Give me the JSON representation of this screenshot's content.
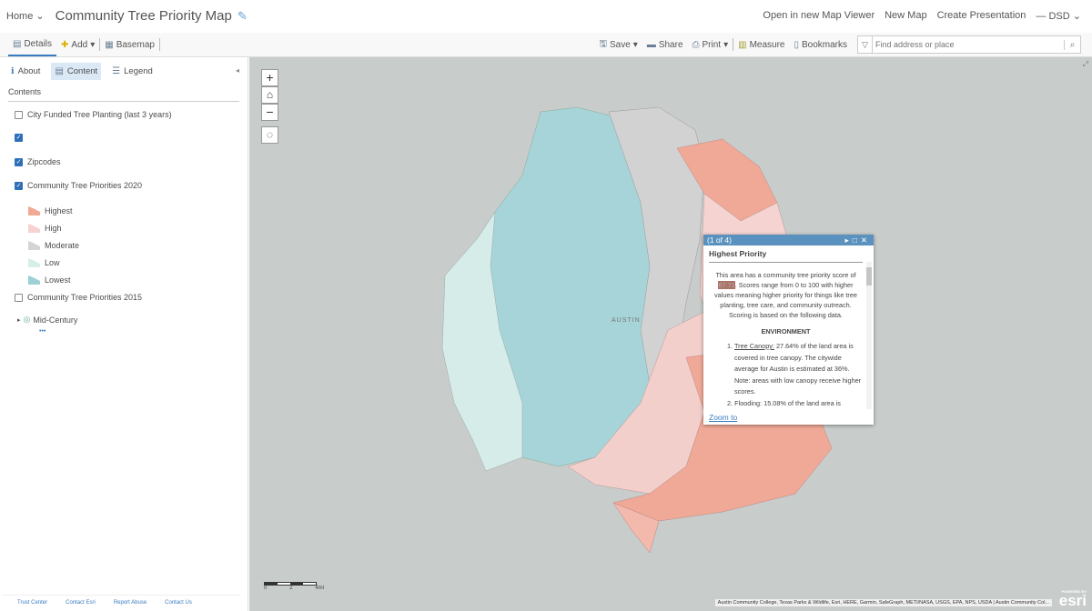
{
  "header": {
    "home": "Home",
    "title": "Community Tree Priority Map",
    "links": [
      "Open in new Map Viewer",
      "New Map",
      "Create Presentation"
    ],
    "user": "DSD"
  },
  "toolbar": {
    "details": "Details",
    "add": "Add",
    "basemap": "Basemap",
    "save": "Save",
    "share": "Share",
    "print": "Print",
    "measure": "Measure",
    "bookmarks": "Bookmarks",
    "search_placeholder": "Find address or place"
  },
  "sidebar": {
    "tabs": [
      "About",
      "Content",
      "Legend"
    ],
    "active_tab": "Content",
    "contents_label": "Contents",
    "layers": [
      {
        "label": "City Funded Tree Planting (last 3 years)",
        "checked": false
      },
      {
        "label": "",
        "checked": true
      },
      {
        "label": "Zipcodes",
        "checked": true
      },
      {
        "label": "Community Tree Priorities 2020",
        "checked": true
      },
      {
        "label": "Community Tree Priorities 2015",
        "checked": false
      },
      {
        "label": "Mid-Century",
        "checked": false
      }
    ],
    "legend": [
      {
        "label": "Highest",
        "color": "#f2a993"
      },
      {
        "label": "High",
        "color": "#f6d3d0"
      },
      {
        "label": "Moderate",
        "color": "#d4d4d4"
      },
      {
        "label": "Low",
        "color": "#d6efea"
      },
      {
        "label": "Lowest",
        "color": "#9ed1d6"
      }
    ],
    "more": "•••",
    "footer": [
      "Trust Center",
      "Contact Esri",
      "Report Abuse",
      "Contact Us"
    ]
  },
  "map": {
    "place_label": "AUSTIN",
    "scale_labels": [
      "0",
      "2",
      "4mi"
    ],
    "attribution": "Austin Community College, Texas Parks & Wildlife, Esri, HERE, Garmin, SafeGraph, METI/NASA, USGS, EPA, NPS, USDA | Austin Community Col...",
    "esri_powered": "POWERED BY",
    "esri": "esri"
  },
  "popup": {
    "counter": "(1 of 4)",
    "title": "Highest Priority",
    "intro_before": "This area has a community tree priority score of ",
    "score": "67.71",
    "intro_after": ". Scores range from 0 to 100 with higher values meaning higher priority for things like tree planting, tree care, and community outreach. Scoring is based on the following data.",
    "section": "ENVIRONMENT",
    "item1_label": "Tree Canopy:",
    "item1_text": " 27.64% of the land area is covered in tree canopy. The citywide average for Austin is estimated at 36%. Note: areas with low canopy receive higher scores.",
    "item2_partial": "2. Flooding: 15.08% of the land area is",
    "zoom_to": "Zoom to"
  }
}
